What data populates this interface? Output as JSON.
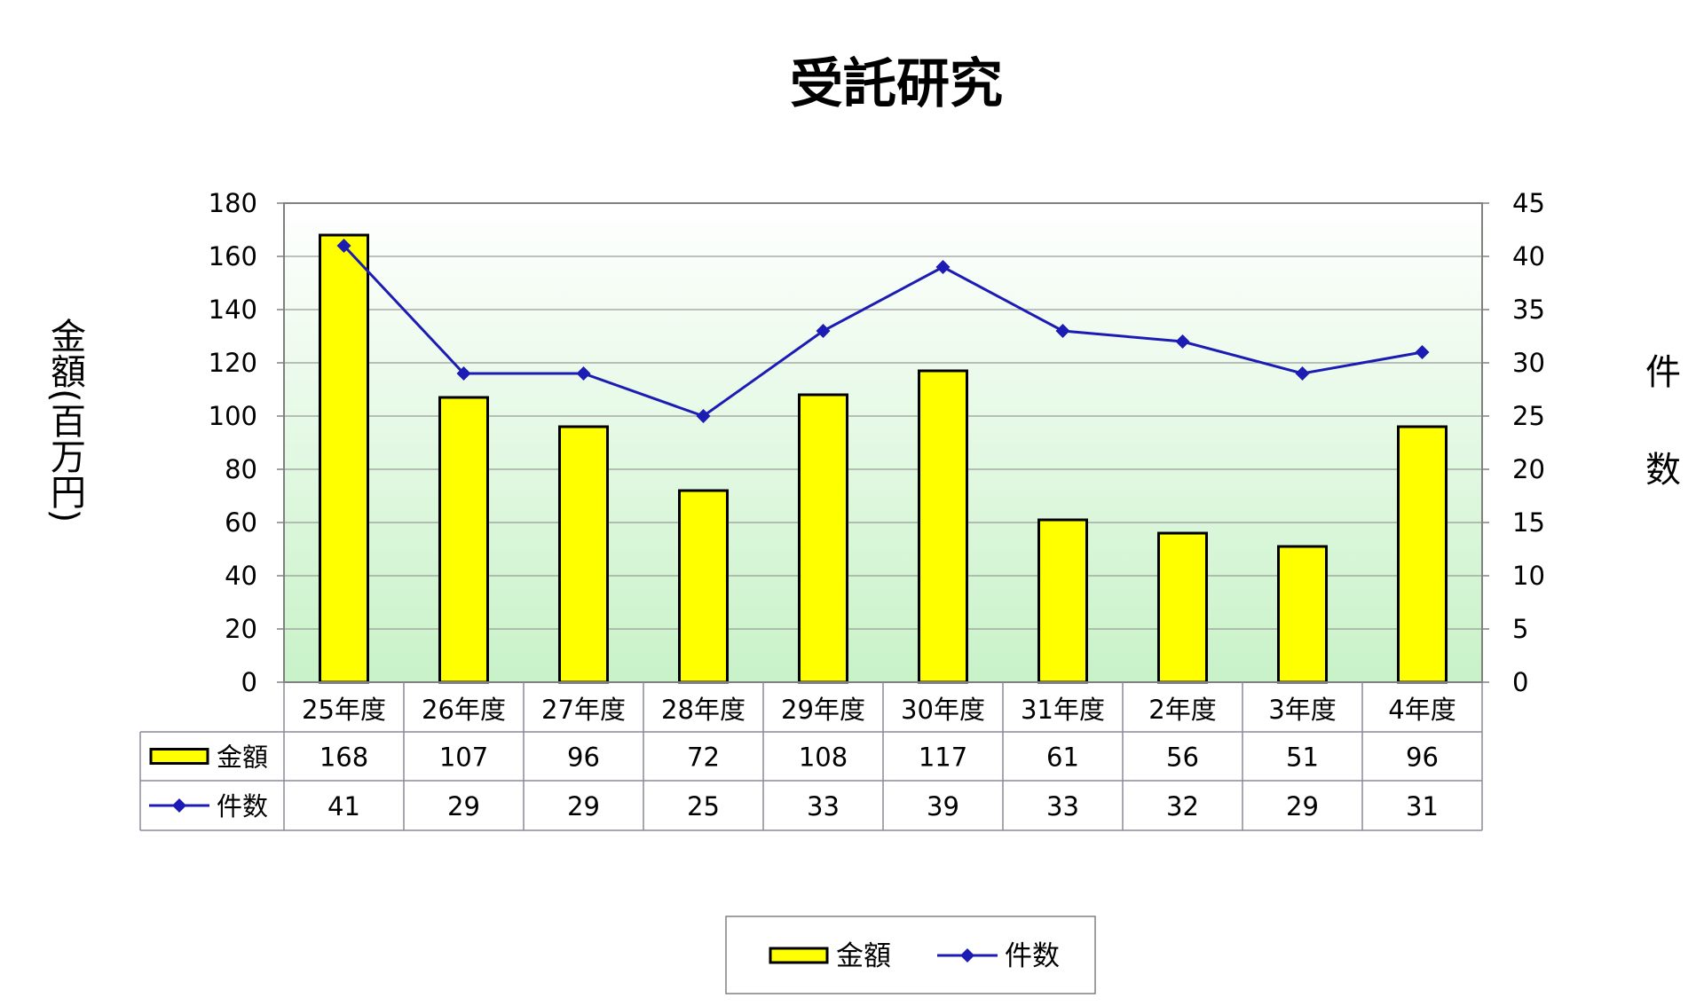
{
  "chart_data": {
    "type": "bar",
    "title": "受託研究",
    "categories": [
      "25年度",
      "26年度",
      "27年度",
      "28年度",
      "29年度",
      "30年度",
      "31年度",
      "2年度",
      "3年度",
      "4年度"
    ],
    "series": [
      {
        "name": "金額",
        "type": "bar",
        "axis": "left",
        "values": [
          168,
          107,
          96,
          72,
          108,
          117,
          61,
          56,
          51,
          96
        ],
        "color": "#ffff00",
        "outline": "#000000"
      },
      {
        "name": "件数",
        "type": "line",
        "axis": "right",
        "marker": "diamond",
        "values": [
          41,
          29,
          29,
          25,
          33,
          39,
          33,
          32,
          29,
          31
        ],
        "color": "#1c1cb4"
      }
    ],
    "ylabel": "金額(百万円)",
    "y2label": "件数",
    "ylim": [
      0,
      180
    ],
    "y2lim": [
      0,
      45
    ],
    "yticks": [
      "0",
      "20",
      "40",
      "60",
      "80",
      "100",
      "120",
      "140",
      "160",
      "180"
    ],
    "y2ticks": [
      "0",
      "5",
      "10",
      "15",
      "20",
      "25",
      "30",
      "35",
      "40",
      "45"
    ],
    "grid": true,
    "data_table": true,
    "legend": "bottom",
    "background_gradient": [
      "#ffffff",
      "#c8f2c8"
    ]
  }
}
